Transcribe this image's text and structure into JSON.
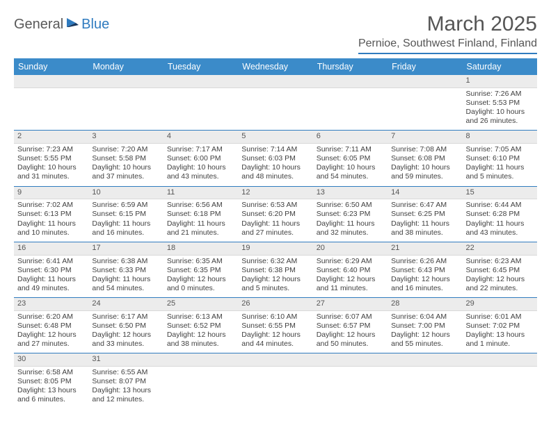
{
  "logo": {
    "part1": "General",
    "part2": "Blue"
  },
  "title": "March 2025",
  "location": "Pernioe, Southwest Finland, Finland",
  "colors": {
    "header_bg": "#3b8bc9",
    "accent": "#2f7bbf",
    "daynum_bg": "#ececec",
    "text": "#404040"
  },
  "headers": [
    "Sunday",
    "Monday",
    "Tuesday",
    "Wednesday",
    "Thursday",
    "Friday",
    "Saturday"
  ],
  "weeks": [
    {
      "nums": [
        "",
        "",
        "",
        "",
        "",
        "",
        "1"
      ],
      "cells": [
        null,
        null,
        null,
        null,
        null,
        null,
        {
          "sunrise": "7:26 AM",
          "sunset": "5:53 PM",
          "daylight": "10 hours and 26 minutes."
        }
      ]
    },
    {
      "nums": [
        "2",
        "3",
        "4",
        "5",
        "6",
        "7",
        "8"
      ],
      "cells": [
        {
          "sunrise": "7:23 AM",
          "sunset": "5:55 PM",
          "daylight": "10 hours and 31 minutes."
        },
        {
          "sunrise": "7:20 AM",
          "sunset": "5:58 PM",
          "daylight": "10 hours and 37 minutes."
        },
        {
          "sunrise": "7:17 AM",
          "sunset": "6:00 PM",
          "daylight": "10 hours and 43 minutes."
        },
        {
          "sunrise": "7:14 AM",
          "sunset": "6:03 PM",
          "daylight": "10 hours and 48 minutes."
        },
        {
          "sunrise": "7:11 AM",
          "sunset": "6:05 PM",
          "daylight": "10 hours and 54 minutes."
        },
        {
          "sunrise": "7:08 AM",
          "sunset": "6:08 PM",
          "daylight": "10 hours and 59 minutes."
        },
        {
          "sunrise": "7:05 AM",
          "sunset": "6:10 PM",
          "daylight": "11 hours and 5 minutes."
        }
      ]
    },
    {
      "nums": [
        "9",
        "10",
        "11",
        "12",
        "13",
        "14",
        "15"
      ],
      "cells": [
        {
          "sunrise": "7:02 AM",
          "sunset": "6:13 PM",
          "daylight": "11 hours and 10 minutes."
        },
        {
          "sunrise": "6:59 AM",
          "sunset": "6:15 PM",
          "daylight": "11 hours and 16 minutes."
        },
        {
          "sunrise": "6:56 AM",
          "sunset": "6:18 PM",
          "daylight": "11 hours and 21 minutes."
        },
        {
          "sunrise": "6:53 AM",
          "sunset": "6:20 PM",
          "daylight": "11 hours and 27 minutes."
        },
        {
          "sunrise": "6:50 AM",
          "sunset": "6:23 PM",
          "daylight": "11 hours and 32 minutes."
        },
        {
          "sunrise": "6:47 AM",
          "sunset": "6:25 PM",
          "daylight": "11 hours and 38 minutes."
        },
        {
          "sunrise": "6:44 AM",
          "sunset": "6:28 PM",
          "daylight": "11 hours and 43 minutes."
        }
      ]
    },
    {
      "nums": [
        "16",
        "17",
        "18",
        "19",
        "20",
        "21",
        "22"
      ],
      "cells": [
        {
          "sunrise": "6:41 AM",
          "sunset": "6:30 PM",
          "daylight": "11 hours and 49 minutes."
        },
        {
          "sunrise": "6:38 AM",
          "sunset": "6:33 PM",
          "daylight": "11 hours and 54 minutes."
        },
        {
          "sunrise": "6:35 AM",
          "sunset": "6:35 PM",
          "daylight": "12 hours and 0 minutes."
        },
        {
          "sunrise": "6:32 AM",
          "sunset": "6:38 PM",
          "daylight": "12 hours and 5 minutes."
        },
        {
          "sunrise": "6:29 AM",
          "sunset": "6:40 PM",
          "daylight": "12 hours and 11 minutes."
        },
        {
          "sunrise": "6:26 AM",
          "sunset": "6:43 PM",
          "daylight": "12 hours and 16 minutes."
        },
        {
          "sunrise": "6:23 AM",
          "sunset": "6:45 PM",
          "daylight": "12 hours and 22 minutes."
        }
      ]
    },
    {
      "nums": [
        "23",
        "24",
        "25",
        "26",
        "27",
        "28",
        "29"
      ],
      "cells": [
        {
          "sunrise": "6:20 AM",
          "sunset": "6:48 PM",
          "daylight": "12 hours and 27 minutes."
        },
        {
          "sunrise": "6:17 AM",
          "sunset": "6:50 PM",
          "daylight": "12 hours and 33 minutes."
        },
        {
          "sunrise": "6:13 AM",
          "sunset": "6:52 PM",
          "daylight": "12 hours and 38 minutes."
        },
        {
          "sunrise": "6:10 AM",
          "sunset": "6:55 PM",
          "daylight": "12 hours and 44 minutes."
        },
        {
          "sunrise": "6:07 AM",
          "sunset": "6:57 PM",
          "daylight": "12 hours and 50 minutes."
        },
        {
          "sunrise": "6:04 AM",
          "sunset": "7:00 PM",
          "daylight": "12 hours and 55 minutes."
        },
        {
          "sunrise": "6:01 AM",
          "sunset": "7:02 PM",
          "daylight": "13 hours and 1 minute."
        }
      ]
    },
    {
      "nums": [
        "30",
        "31",
        "",
        "",
        "",
        "",
        ""
      ],
      "cells": [
        {
          "sunrise": "6:58 AM",
          "sunset": "8:05 PM",
          "daylight": "13 hours and 6 minutes."
        },
        {
          "sunrise": "6:55 AM",
          "sunset": "8:07 PM",
          "daylight": "13 hours and 12 minutes."
        },
        null,
        null,
        null,
        null,
        null
      ]
    }
  ],
  "labels": {
    "sunrise_prefix": "Sunrise: ",
    "sunset_prefix": "Sunset: ",
    "daylight_prefix": "Daylight: "
  }
}
